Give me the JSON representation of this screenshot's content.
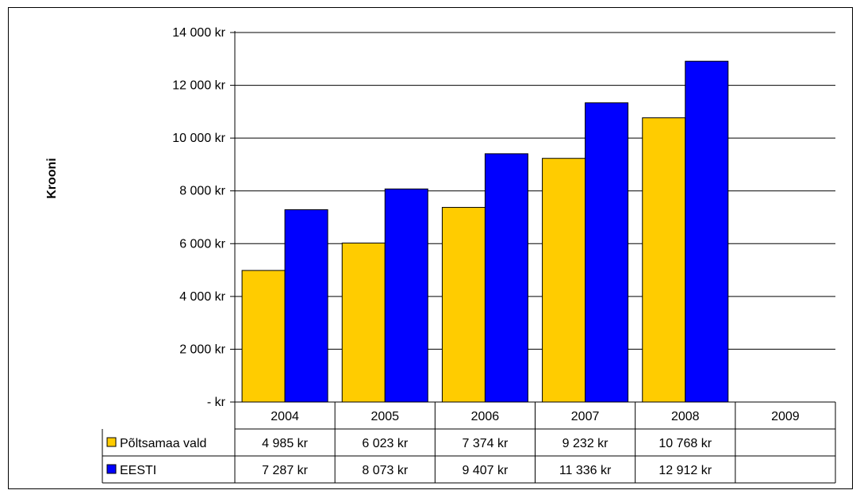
{
  "chart_data": {
    "type": "bar",
    "ylabel": "Krooni",
    "categories": [
      "2004",
      "2005",
      "2006",
      "2007",
      "2008",
      "2009"
    ],
    "y_tick_labels": [
      "- kr",
      "2 000 kr",
      "4 000 kr",
      "6 000 kr",
      "8 000 kr",
      "10 000 kr",
      "12 000 kr",
      "14 000 kr"
    ],
    "ylim": [
      0,
      14000
    ],
    "y_step": 2000,
    "grid": true,
    "legend": "data-table",
    "series": [
      {
        "name": "Põltsamaa vald",
        "color": "#FFCC00",
        "values": [
          4985,
          6023,
          7374,
          9232,
          10768,
          null
        ],
        "labels": [
          "4 985 kr",
          "6 023 kr",
          "7 374 kr",
          "9 232 kr",
          "10 768 kr",
          ""
        ]
      },
      {
        "name": "EESTI",
        "color": "#0000FF",
        "values": [
          7287,
          8073,
          9407,
          11336,
          12912,
          null
        ],
        "labels": [
          "7 287 kr",
          "8 073 kr",
          "9 407 kr",
          "11 336 kr",
          "12 912 kr",
          ""
        ]
      }
    ]
  }
}
